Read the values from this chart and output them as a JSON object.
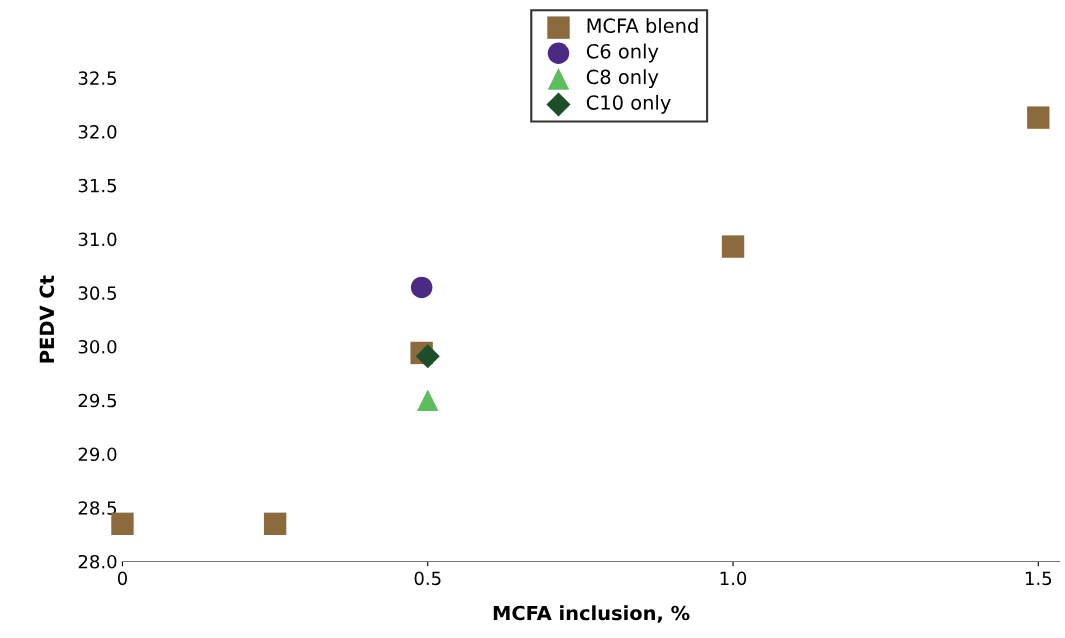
{
  "chart_data": {
    "type": "scatter",
    "xlabel": "MCFA inclusion, %",
    "ylabel": "PEDV Ct",
    "series": [
      {
        "name": "MCFA blend",
        "color": "#8b6a3e",
        "marker": "square",
        "x": [
          0,
          0.25,
          0.49,
          1.0,
          1.5
        ],
        "values": [
          28.35,
          28.35,
          29.94,
          30.93,
          32.13
        ]
      },
      {
        "name": "C6 only",
        "color": "#4b2a84",
        "marker": "circle",
        "x": [
          0.49
        ],
        "values": [
          30.55
        ]
      },
      {
        "name": "C8 only",
        "color": "#5cbd5a",
        "marker": "triangle",
        "x": [
          0.5
        ],
        "values": [
          29.5
        ]
      },
      {
        "name": "C10 only",
        "color": "#1d4d29",
        "marker": "diamond",
        "x": [
          0.5
        ],
        "values": [
          29.91
        ]
      }
    ],
    "xlim": [
      0,
      1.535
    ],
    "xticks": [
      0,
      0.5,
      {
        "value": 1.0,
        "label": "1.0"
      },
      1.5
    ],
    "ylim": [
      28.0,
      32.5
    ],
    "yticks": [
      {
        "value": 28.0,
        "label": "28.0"
      },
      28.5,
      {
        "value": 29.0,
        "label": "29.0"
      },
      29.5,
      {
        "value": 30.0,
        "label": "30.0"
      },
      30.5,
      {
        "value": 31.0,
        "label": "31.0"
      },
      31.5,
      {
        "value": 32.0,
        "label": "32.0"
      },
      32.5
    ],
    "grid": false,
    "legend": "top"
  }
}
